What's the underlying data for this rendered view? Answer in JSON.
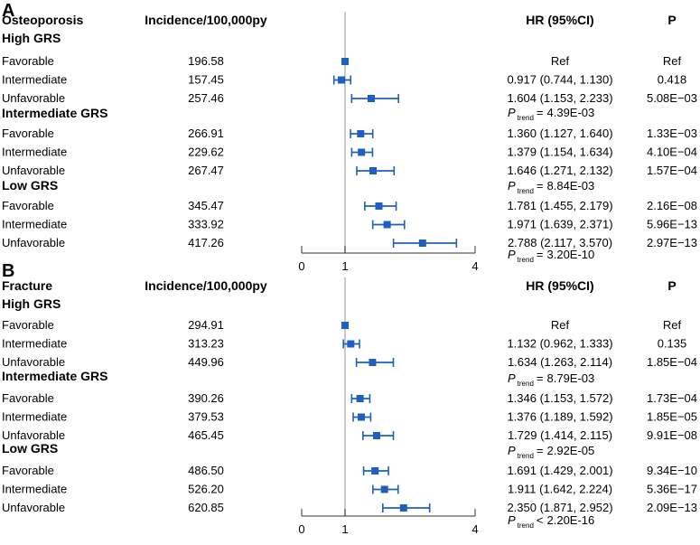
{
  "panels": [
    {
      "label": "A",
      "title": "Osteoporosis",
      "col_incidence": "Incidence/100,000py",
      "col_hr": "HR (95%CI)",
      "col_p": "P",
      "groups": [
        {
          "name": "High GRS",
          "ptrend": null,
          "rows": [
            {
              "label": "Favorable",
              "incidence": "196.58",
              "hr_text": "Ref",
              "p": "Ref"
            },
            {
              "label": "Intermediate",
              "incidence": "157.45",
              "hr_text": "0.917 (0.744, 1.130)",
              "p": "0.418"
            },
            {
              "label": "Unfavorable",
              "incidence": "257.46",
              "hr_text": "1.604 (1.153, 2.233)",
              "p": "5.08E−03"
            }
          ]
        },
        {
          "name": "Intermediate GRS",
          "ptrend": {
            "symbol": "P",
            "sub": "trend",
            "rel": "=",
            "value": "4.39E-03"
          },
          "rows": [
            {
              "label": "Favorable",
              "incidence": "266.91",
              "hr_text": "1.360 (1.127, 1.640)",
              "p": "1.33E−03"
            },
            {
              "label": "Intermediate",
              "incidence": "229.62",
              "hr_text": "1.379 (1.154, 1.634)",
              "p": "4.10E−04"
            },
            {
              "label": "Unfavorable",
              "incidence": "267.47",
              "hr_text": "1.646 (1.271, 2.132)",
              "p": "1.57E−04"
            }
          ]
        },
        {
          "name": "Low GRS",
          "ptrend": {
            "symbol": "P",
            "sub": "trend",
            "rel": "=",
            "value": "8.84E-03"
          },
          "rows": [
            {
              "label": "Favorable",
              "incidence": "345.47",
              "hr_text": "1.781 (1.455, 2.179)",
              "p": "2.16E−08"
            },
            {
              "label": "Intermediate",
              "incidence": "333.92",
              "hr_text": "1.971 (1.639, 2.371)",
              "p": "5.96E−13"
            },
            {
              "label": "Unfavorable",
              "incidence": "417.26",
              "hr_text": "2.788 (2.117, 3.570)",
              "p": "2.97E−13"
            }
          ]
        }
      ],
      "final_ptrend": {
        "symbol": "P",
        "sub": "trend",
        "rel": "=",
        "value": "3.20E-10"
      },
      "axis_ticks": [
        "0",
        "1",
        "4"
      ]
    },
    {
      "label": "B",
      "title": "Fracture",
      "col_incidence": "Incidence/100,000py",
      "col_hr": "HR (95%CI)",
      "col_p": "P",
      "groups": [
        {
          "name": "High GRS",
          "ptrend": null,
          "rows": [
            {
              "label": "Favorable",
              "incidence": "294.91",
              "hr_text": "Ref",
              "p": "Ref"
            },
            {
              "label": "Intermediate",
              "incidence": "313.23",
              "hr_text": "1.132 (0.962, 1.333)",
              "p": "0.135"
            },
            {
              "label": "Unfavorable",
              "incidence": "449.96",
              "hr_text": "1.634 (1.263, 2.114)",
              "p": "1.85E−04"
            }
          ]
        },
        {
          "name": "Intermediate GRS",
          "ptrend": {
            "symbol": "P",
            "sub": "trend",
            "rel": "=",
            "value": "8.79E-03"
          },
          "rows": [
            {
              "label": "Favorable",
              "incidence": "390.26",
              "hr_text": "1.346 (1.153, 1.572)",
              "p": "1.73E−04"
            },
            {
              "label": "Intermediate",
              "incidence": "379.53",
              "hr_text": "1.376 (1.189, 1.592)",
              "p": "1.85E−05"
            },
            {
              "label": "Unfavorable",
              "incidence": "465.45",
              "hr_text": "1.729 (1.414, 2.115)",
              "p": "9.91E−08"
            }
          ]
        },
        {
          "name": "Low GRS",
          "ptrend": {
            "symbol": "P",
            "sub": "trend",
            "rel": "=",
            "value": "2.92E-05"
          },
          "rows": [
            {
              "label": "Favorable",
              "incidence": "486.50",
              "hr_text": "1.691 (1.429, 2.001)",
              "p": "9.34E−10"
            },
            {
              "label": "Intermediate",
              "incidence": "526.20",
              "hr_text": "1.911 (1.642, 2.224)",
              "p": "5.36E−17"
            },
            {
              "label": "Unfavorable",
              "incidence": "620.85",
              "hr_text": "2.350 (1.871, 2.952)",
              "p": "2.09E−13"
            }
          ]
        }
      ],
      "final_ptrend": {
        "symbol": "P",
        "sub": "trend",
        "rel": "<",
        "value": "2.20E-16"
      },
      "axis_ticks": [
        "0",
        "1",
        "4"
      ]
    }
  ],
  "chart_data": [
    {
      "type": "forest",
      "title": "Osteoporosis",
      "xlim": [
        0,
        4
      ],
      "reference_line": 1,
      "marker_color": "#1f5fbf",
      "categories": [
        "High GRS Favorable",
        "High GRS Intermediate",
        "High GRS Unfavorable",
        "Intermediate GRS Favorable",
        "Intermediate GRS Intermediate",
        "Intermediate GRS Unfavorable",
        "Low GRS Favorable",
        "Low GRS Intermediate",
        "Low GRS Unfavorable"
      ],
      "hr": [
        1.0,
        0.917,
        1.604,
        1.36,
        1.379,
        1.646,
        1.781,
        1.971,
        2.788
      ],
      "lower": [
        1.0,
        0.744,
        1.153,
        1.127,
        1.154,
        1.271,
        1.455,
        1.639,
        2.117
      ],
      "upper": [
        1.0,
        1.13,
        2.233,
        1.64,
        1.634,
        2.132,
        2.179,
        2.371,
        3.57
      ]
    },
    {
      "type": "forest",
      "title": "Fracture",
      "xlim": [
        0,
        4
      ],
      "reference_line": 1,
      "marker_color": "#1f5fbf",
      "categories": [
        "High GRS Favorable",
        "High GRS Intermediate",
        "High GRS Unfavorable",
        "Intermediate GRS Favorable",
        "Intermediate GRS Intermediate",
        "Intermediate GRS Unfavorable",
        "Low GRS Favorable",
        "Low GRS Intermediate",
        "Low GRS Unfavorable"
      ],
      "hr": [
        1.0,
        1.132,
        1.634,
        1.346,
        1.376,
        1.729,
        1.691,
        1.911,
        2.35
      ],
      "lower": [
        1.0,
        0.962,
        1.263,
        1.153,
        1.189,
        1.414,
        1.429,
        1.642,
        1.871
      ],
      "upper": [
        1.0,
        1.333,
        2.114,
        1.572,
        1.592,
        2.115,
        2.001,
        2.224,
        2.952
      ]
    }
  ]
}
